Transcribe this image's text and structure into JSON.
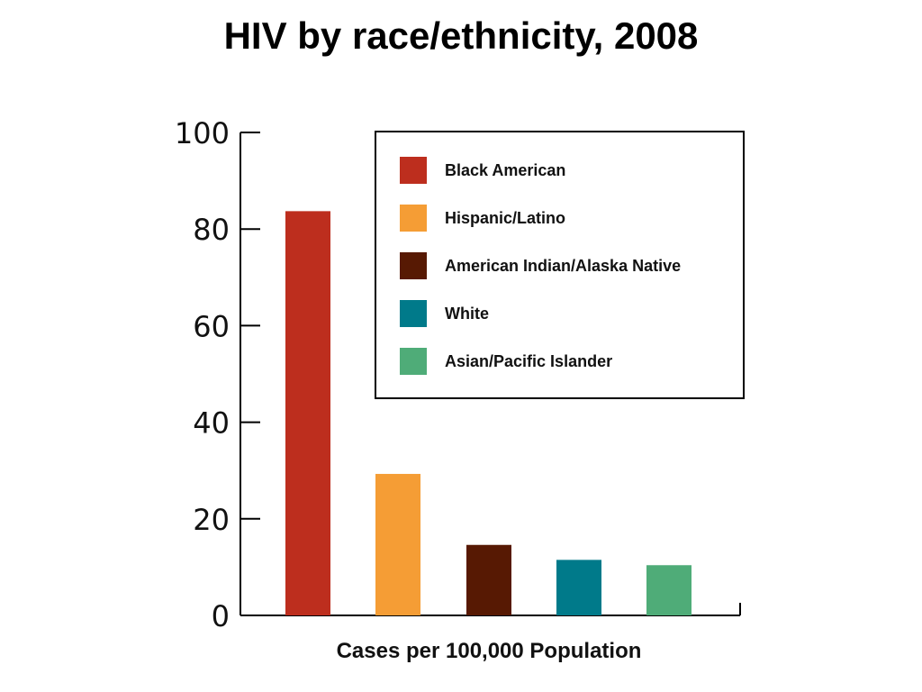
{
  "chart_data": {
    "type": "bar",
    "title": "HIV by race/ethnicity, 2008",
    "xlabel": "Cases per 100,000 Population",
    "ylabel": "",
    "ylim": [
      0,
      100
    ],
    "yticks": [
      0,
      20,
      40,
      60,
      80,
      100
    ],
    "categories": [
      "Black American",
      "Hispanic/Latino",
      "American Indian/Alaska Native",
      "White",
      "Asian/Pacific Islander"
    ],
    "values": [
      83.7,
      29.3,
      14.6,
      11.5,
      10.4
    ],
    "colors": [
      "#bd2e1e",
      "#f59d35",
      "#571903",
      "#007a8a",
      "#4fac78"
    ],
    "legend_position": "top-right",
    "grid": false
  }
}
